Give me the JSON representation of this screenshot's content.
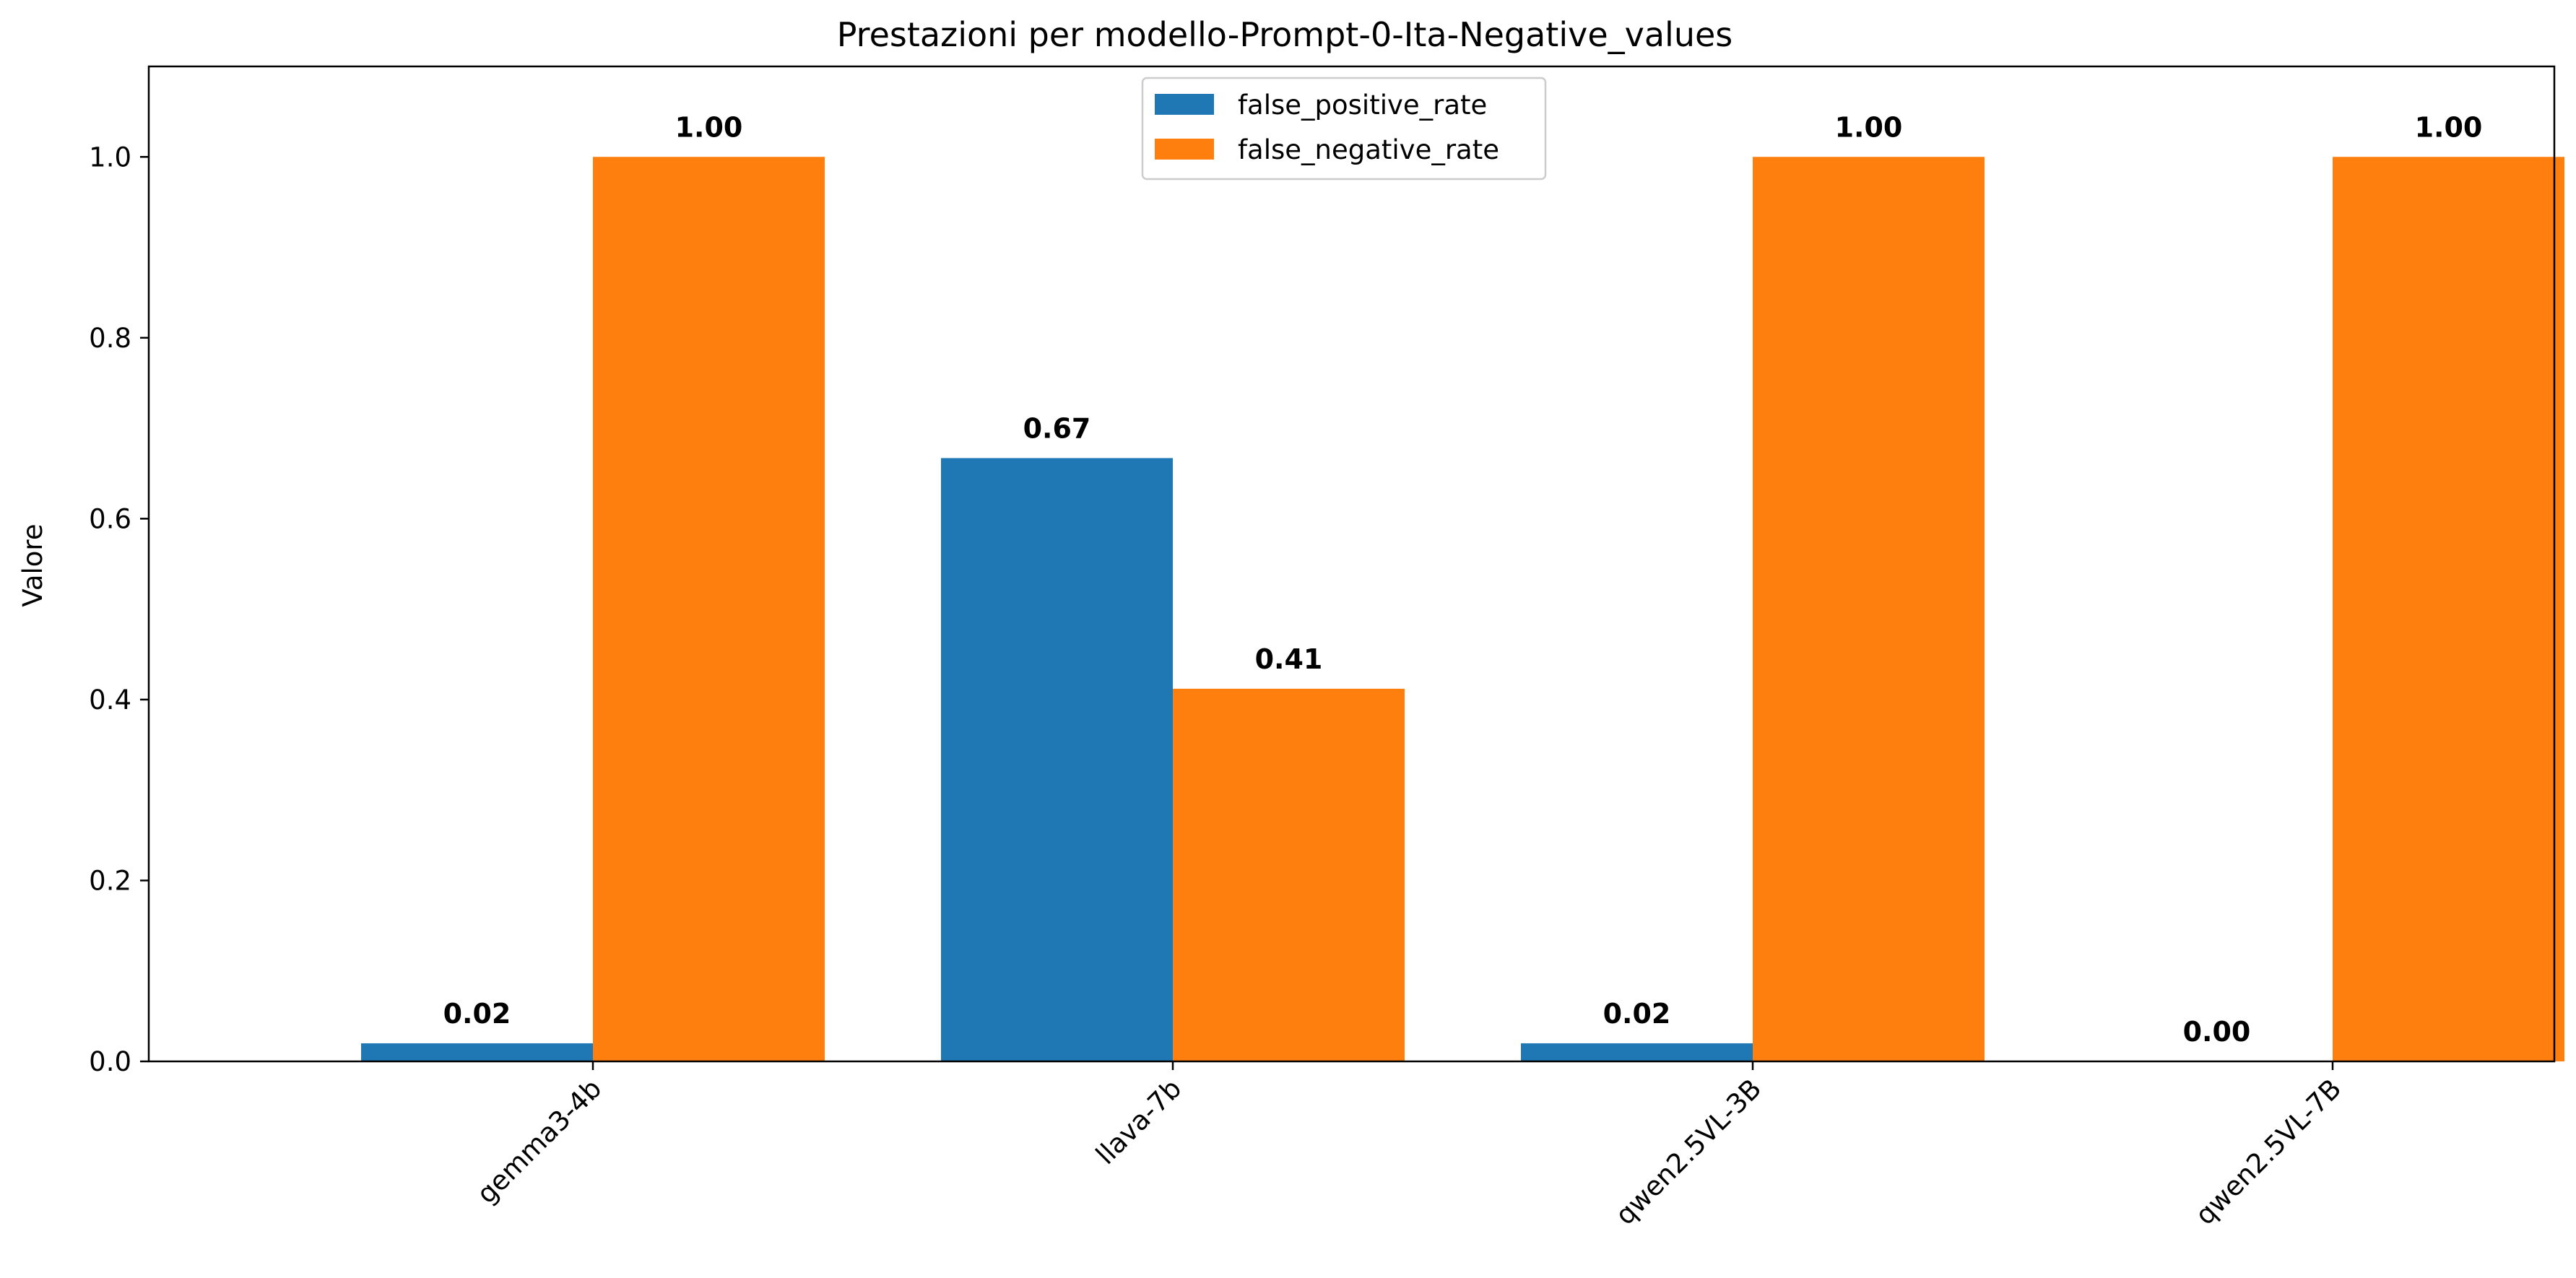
{
  "chart_data": {
    "type": "bar",
    "title": "Prestazioni per modello-Prompt-0-Ita-Negative_values",
    "xlabel": "",
    "ylabel": "Valore",
    "categories": [
      "gemma3-4b",
      "llava-7b",
      "qwen2.5VL-3B",
      "qwen2.5VL-7B"
    ],
    "series": [
      {
        "name": "false_positive_rate",
        "color": "#1f77b4",
        "values": [
          0.02,
          0.667,
          0.02,
          0.0
        ],
        "labels": [
          "0.02",
          "0.67",
          "0.02",
          "0.00"
        ]
      },
      {
        "name": "false_negative_rate",
        "color": "#ff7f0e",
        "values": [
          1.0,
          0.412,
          1.0,
          1.0
        ],
        "labels": [
          "1.00",
          "0.41",
          "1.00",
          "1.00"
        ]
      }
    ],
    "ylim": [
      0,
      1.1
    ],
    "yticks": [
      "0.0",
      "0.2",
      "0.4",
      "0.6",
      "0.8",
      "1.0"
    ],
    "grid": false,
    "legend_position": "top-center"
  }
}
